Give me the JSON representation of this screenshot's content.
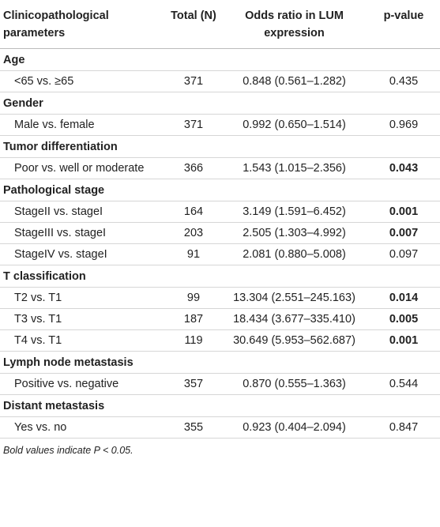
{
  "header": {
    "parameter": "Clinicopathological parameters",
    "total": "Total (N)",
    "odds_ratio": "Odds ratio in LUM expression",
    "p_value": "p-value"
  },
  "sections": [
    {
      "title": "Age",
      "rows": [
        {
          "parameter": "<65 vs. ≥65",
          "total": 371,
          "odds_ratio": "0.848 (0.561–1.282)",
          "p_value": 0.435,
          "bold": false
        }
      ]
    },
    {
      "title": "Gender",
      "rows": [
        {
          "parameter": "Male vs. female",
          "total": 371,
          "odds_ratio": "0.992 (0.650–1.514)",
          "p_value": 0.969,
          "bold": false
        }
      ]
    },
    {
      "title": "Tumor differentiation",
      "rows": [
        {
          "parameter": "Poor vs. well or moderate",
          "total": 366,
          "odds_ratio": "1.543 (1.015–2.356)",
          "p_value": 0.043,
          "bold": true
        }
      ]
    },
    {
      "title": "Pathological stage",
      "rows": [
        {
          "parameter": "StageII vs. stageI",
          "total": 164,
          "odds_ratio": "3.149 (1.591–6.452)",
          "p_value": 0.001,
          "bold": true
        },
        {
          "parameter": "StageIII vs. stageI",
          "total": 203,
          "odds_ratio": "2.505 (1.303–4.992)",
          "p_value": 0.007,
          "bold": true
        },
        {
          "parameter": "StageIV vs. stageI",
          "total": 91,
          "odds_ratio": "2.081 (0.880–5.008)",
          "p_value": 0.097,
          "bold": false
        }
      ]
    },
    {
      "title": "T classification",
      "rows": [
        {
          "parameter": "T2 vs. T1",
          "total": 99,
          "odds_ratio": "13.304 (2.551–245.163)",
          "p_value": 0.014,
          "bold": true
        },
        {
          "parameter": "T3 vs. T1",
          "total": 187,
          "odds_ratio": "18.434 (3.677–335.410)",
          "p_value": 0.005,
          "bold": true
        },
        {
          "parameter": "T4 vs. T1",
          "total": 119,
          "odds_ratio": "30.649 (5.953–562.687)",
          "p_value": 0.001,
          "bold": true
        }
      ]
    },
    {
      "title": "Lymph node metastasis",
      "rows": [
        {
          "parameter": "Positive vs. negative",
          "total": 357,
          "odds_ratio": "0.870 (0.555–1.363)",
          "p_value": 0.544,
          "bold": false
        }
      ]
    },
    {
      "title": "Distant metastasis",
      "rows": [
        {
          "parameter": "Yes vs. no",
          "total": 355,
          "odds_ratio": "0.923 (0.404–2.094)",
          "p_value": 0.847,
          "bold": false
        }
      ]
    }
  ],
  "footnote": "Bold values indicate P < 0.05."
}
